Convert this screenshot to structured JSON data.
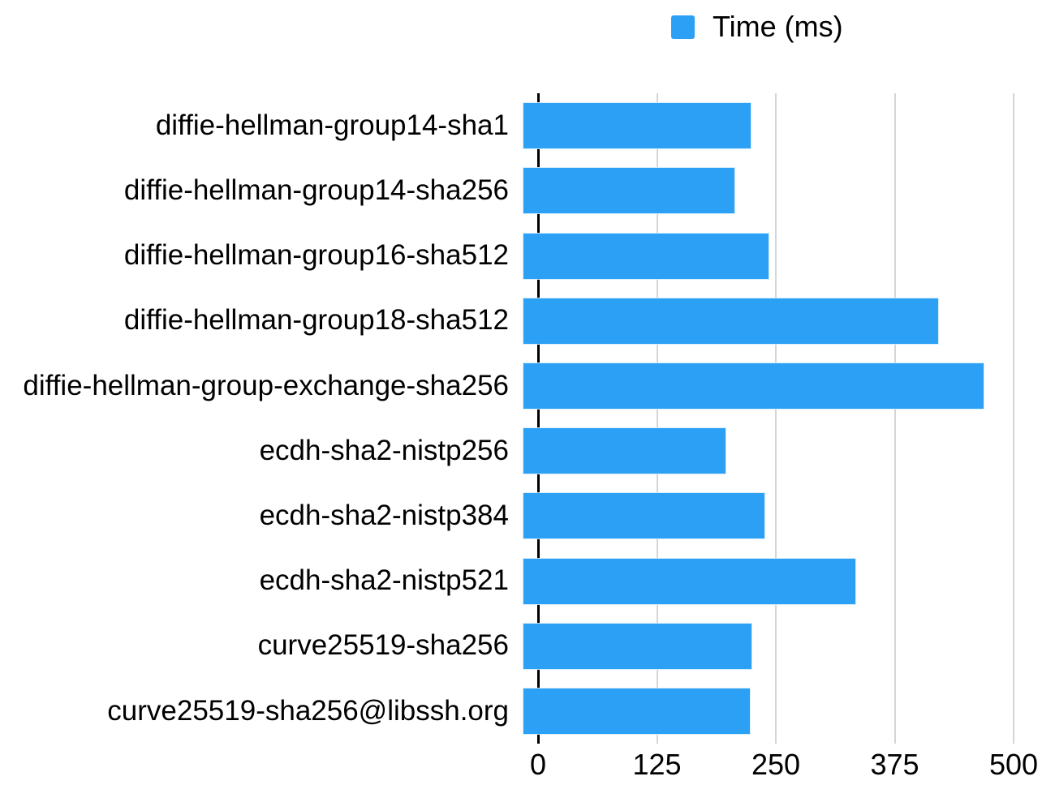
{
  "legend": {
    "label": "Time (ms)",
    "swatch_color": "#2BA0F4"
  },
  "colors": {
    "bar": "#2BA0F4",
    "gridline": "#D5D5D5",
    "axis": "#000000",
    "text": "#000000",
    "background": "#FFFFFF"
  },
  "chart_data": {
    "type": "bar",
    "orientation": "horizontal",
    "title": "",
    "xlabel": "",
    "ylabel": "",
    "legend_entries": [
      "Time (ms)"
    ],
    "legend_position": "top-center",
    "grid": true,
    "xlim": [
      0,
      500
    ],
    "xticks": [
      0,
      125,
      250,
      375,
      500
    ],
    "categories": [
      "diffie-hellman-group14-sha1",
      "diffie-hellman-group14-sha256",
      "diffie-hellman-group16-sha512",
      "diffie-hellman-group18-sha512",
      "diffie-hellman-group-exchange-sha256",
      "ecdh-sha2-nistp256",
      "ecdh-sha2-nistp384",
      "ecdh-sha2-nistp521",
      "curve25519-sha256",
      "curve25519-sha256@libssh.org"
    ],
    "series": [
      {
        "name": "Time (ms)",
        "values": [
          239,
          222,
          258,
          436,
          484,
          212,
          253,
          349,
          240,
          238
        ]
      }
    ]
  }
}
